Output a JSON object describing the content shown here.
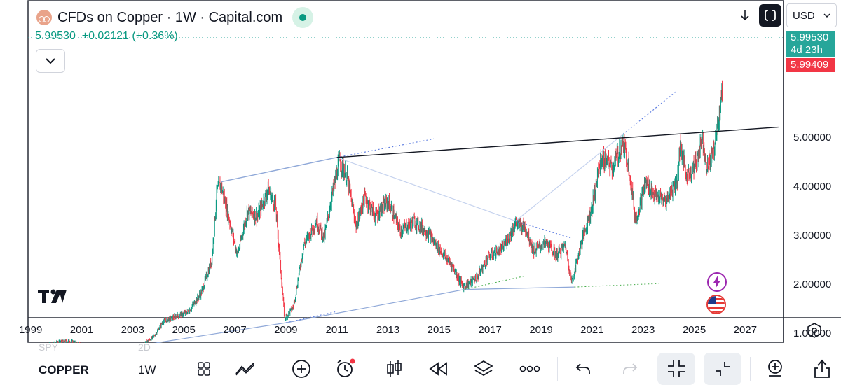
{
  "header": {
    "title": "CFDs on Copper · 1W · Capital.com",
    "price": "5.99530",
    "change": "+0.02121",
    "change_pct": "(+0.36%)"
  },
  "currency": "USD",
  "price_tags": {
    "last_price": "5.99530",
    "countdown": "4d 23h",
    "bid_price": "5.99409"
  },
  "price_scale": [
    "5.00000",
    "4.00000",
    "3.00000",
    "2.00000",
    "1.00000"
  ],
  "time_scale": [
    "1999",
    "2001",
    "2003",
    "2005",
    "2007",
    "2009",
    "2011",
    "2013",
    "2015",
    "2017",
    "2019",
    "2021",
    "2023",
    "2025",
    "2027"
  ],
  "toolbar": {
    "symbol": "COPPER",
    "interval": "1W",
    "ghost_symbols": [
      "SPY",
      "2D"
    ]
  },
  "colors": {
    "up": "#089981",
    "down": "#f23645",
    "trendline": "#8fa8d8",
    "dotted": "#5b7be0",
    "green_dotted": "#4caf50"
  },
  "chart_data": {
    "type": "candlestick",
    "title": "CFDs on Copper · 1W · Capital.com",
    "xlabel": "",
    "ylabel": "",
    "ylim": [
      0.35,
      6.1
    ],
    "xlim": [
      1998.9,
      2028.5
    ],
    "x_ticks": [
      1999,
      2001,
      2003,
      2005,
      2007,
      2009,
      2011,
      2013,
      2015,
      2017,
      2019,
      2021,
      2023,
      2025,
      2027
    ],
    "y_ticks": [
      1,
      2,
      3,
      4,
      5
    ],
    "last_price": 5.9953,
    "price_path": [
      [
        1999.0,
        0.68
      ],
      [
        1999.5,
        0.75
      ],
      [
        2000.0,
        0.82
      ],
      [
        2000.5,
        0.85
      ],
      [
        2001.0,
        0.78
      ],
      [
        2001.5,
        0.68
      ],
      [
        2001.85,
        0.62
      ],
      [
        2002.3,
        0.72
      ],
      [
        2002.8,
        0.68
      ],
      [
        2003.3,
        0.75
      ],
      [
        2003.8,
        0.92
      ],
      [
        2004.2,
        1.25
      ],
      [
        2004.7,
        1.35
      ],
      [
        2005.2,
        1.45
      ],
      [
        2005.7,
        1.85
      ],
      [
        2006.1,
        2.5
      ],
      [
        2006.3,
        3.9
      ],
      [
        2006.45,
        4.05
      ],
      [
        2006.8,
        3.3
      ],
      [
        2007.1,
        2.6
      ],
      [
        2007.5,
        3.5
      ],
      [
        2007.9,
        3.4
      ],
      [
        2008.3,
        3.95
      ],
      [
        2008.6,
        3.6
      ],
      [
        2008.8,
        2.3
      ],
      [
        2008.95,
        1.3
      ],
      [
        2009.3,
        1.55
      ],
      [
        2009.7,
        2.8
      ],
      [
        2010.2,
        3.3
      ],
      [
        2010.5,
        2.95
      ],
      [
        2010.8,
        3.8
      ],
      [
        2011.1,
        4.55
      ],
      [
        2011.4,
        4.2
      ],
      [
        2011.75,
        3.2
      ],
      [
        2012.1,
        3.8
      ],
      [
        2012.5,
        3.4
      ],
      [
        2013.0,
        3.7
      ],
      [
        2013.5,
        3.1
      ],
      [
        2014.0,
        3.3
      ],
      [
        2014.5,
        3.1
      ],
      [
        2014.9,
        2.8
      ],
      [
        2015.5,
        2.4
      ],
      [
        2015.95,
        1.95
      ],
      [
        2016.5,
        2.15
      ],
      [
        2016.9,
        2.55
      ],
      [
        2017.5,
        2.75
      ],
      [
        2018.0,
        3.25
      ],
      [
        2018.4,
        3.15
      ],
      [
        2018.7,
        2.7
      ],
      [
        2019.2,
        2.85
      ],
      [
        2019.6,
        2.6
      ],
      [
        2019.95,
        2.8
      ],
      [
        2020.2,
        2.05
      ],
      [
        2020.6,
        2.9
      ],
      [
        2021.0,
        3.6
      ],
      [
        2021.35,
        4.6
      ],
      [
        2021.8,
        4.4
      ],
      [
        2022.2,
        4.9
      ],
      [
        2022.45,
        4.4
      ],
      [
        2022.7,
        3.3
      ],
      [
        2023.1,
        4.1
      ],
      [
        2023.5,
        3.8
      ],
      [
        2023.9,
        3.7
      ],
      [
        2024.35,
        4.2
      ],
      [
        2024.45,
        4.9
      ],
      [
        2024.7,
        4.2
      ],
      [
        2025.1,
        4.5
      ],
      [
        2025.3,
        5.05
      ],
      [
        2025.5,
        4.4
      ],
      [
        2025.75,
        4.7
      ],
      [
        2025.9,
        5.2
      ],
      [
        2026.0,
        5.6
      ],
      [
        2026.1,
        5.99
      ]
    ],
    "drawings": {
      "resistance_line": [
        [
          2011.0,
          4.6
        ],
        [
          2028.3,
          5.22
        ]
      ],
      "support_line": [
        [
          2001.6,
          0.62
        ],
        [
          2009.0,
          1.22
        ],
        [
          2016.0,
          1.9
        ],
        [
          2020.3,
          1.95
        ]
      ],
      "channel_top": [
        [
          2006.45,
          4.1
        ],
        [
          2011.0,
          4.6
        ]
      ],
      "descending_line": [
        [
          2011.0,
          4.6
        ],
        [
          2018.0,
          3.3
        ],
        [
          2020.2,
          2.95
        ]
      ],
      "ascending_line": [
        [
          2018.0,
          3.3
        ],
        [
          2022.2,
          5.07
        ],
        [
          2024.3,
          5.95
        ]
      ],
      "dotted_extensions": [
        [
          [
            2011.0,
            4.6
          ],
          [
            2014.8,
            4.98
          ]
        ],
        [
          [
            2009.0,
            1.22
          ],
          [
            2011.0,
            1.45
          ]
        ],
        [
          [
            2016.0,
            1.9
          ],
          [
            2018.4,
            2.18
          ]
        ],
        [
          [
            2020.3,
            1.95
          ],
          [
            2023.6,
            2.02
          ]
        ]
      ]
    }
  }
}
